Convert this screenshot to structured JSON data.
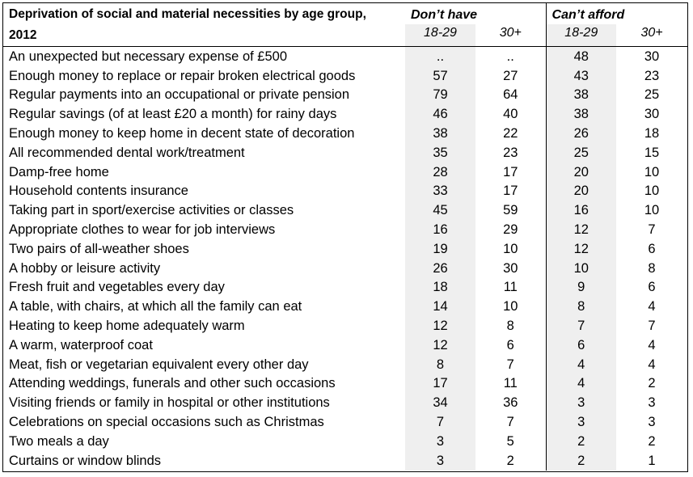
{
  "chart_data": {
    "type": "table",
    "title": "Deprivation of social and material necessities by age group, 2012",
    "groups": [
      "Don’t have",
      "Can’t afford"
    ],
    "subheaders": [
      "18-29",
      "30+",
      "18-29",
      "30+"
    ],
    "rows": [
      {
        "item": "An unexpected but necessary expense of £500",
        "values": [
          "..",
          "..",
          "48",
          "30"
        ]
      },
      {
        "item": "Enough money to replace or repair broken electrical goods",
        "values": [
          "57",
          "27",
          "43",
          "23"
        ]
      },
      {
        "item": "Regular payments into an occupational or private pension",
        "values": [
          "79",
          "64",
          "38",
          "25"
        ]
      },
      {
        "item": "Regular savings (of at least £20 a month) for rainy days",
        "values": [
          "46",
          "40",
          "38",
          "30"
        ]
      },
      {
        "item": "Enough money to keep home in decent state of decoration",
        "values": [
          "38",
          "22",
          "26",
          "18"
        ]
      },
      {
        "item": "All recommended dental work/treatment",
        "values": [
          "35",
          "23",
          "25",
          "15"
        ]
      },
      {
        "item": "Damp-free home",
        "values": [
          "28",
          "17",
          "20",
          "10"
        ]
      },
      {
        "item": "Household contents insurance",
        "values": [
          "33",
          "17",
          "20",
          "10"
        ]
      },
      {
        "item": "Taking part in sport/exercise activities or classes",
        "values": [
          "45",
          "59",
          "16",
          "10"
        ]
      },
      {
        "item": "Appropriate clothes to wear for job interviews",
        "values": [
          "16",
          "29",
          "12",
          "7"
        ]
      },
      {
        "item": "Two pairs of all-weather shoes",
        "values": [
          "19",
          "10",
          "12",
          "6"
        ]
      },
      {
        "item": "A hobby or leisure activity",
        "values": [
          "26",
          "30",
          "10",
          "8"
        ]
      },
      {
        "item": "Fresh fruit and vegetables every day",
        "values": [
          "18",
          "11",
          "9",
          "6"
        ]
      },
      {
        "item": "A table, with chairs, at which all the family can eat",
        "values": [
          "14",
          "10",
          "8",
          "4"
        ]
      },
      {
        "item": "Heating to keep home adequately warm",
        "values": [
          "12",
          "8",
          "7",
          "7"
        ]
      },
      {
        "item": "A warm, waterproof coat",
        "values": [
          "12",
          "6",
          "6",
          "4"
        ]
      },
      {
        "item": "Meat, fish or vegetarian equivalent every other day",
        "values": [
          "8",
          "7",
          "4",
          "4"
        ]
      },
      {
        "item": "Attending weddings, funerals and other such occasions",
        "values": [
          "17",
          "11",
          "4",
          "2"
        ]
      },
      {
        "item": "Visiting friends or family in hospital or other institutions",
        "values": [
          "34",
          "36",
          "3",
          "3"
        ]
      },
      {
        "item": "Celebrations on special occasions such as Christmas",
        "values": [
          "7",
          "7",
          "3",
          "3"
        ]
      },
      {
        "item": "Two meals a day",
        "values": [
          "3",
          "5",
          "2",
          "2"
        ]
      },
      {
        "item": "Curtains or window blinds",
        "values": [
          "3",
          "2",
          "2",
          "1"
        ]
      }
    ]
  }
}
